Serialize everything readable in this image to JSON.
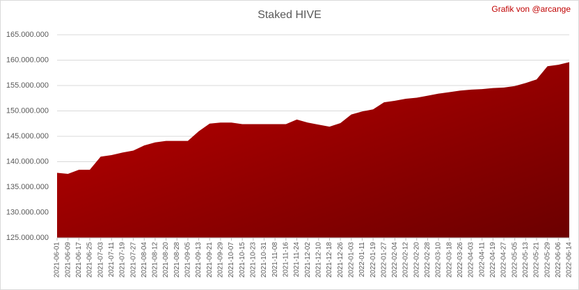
{
  "chart_data": {
    "type": "area",
    "title": "Staked HIVE",
    "watermark": "Grafik von @arcange",
    "categories": [
      "2021-06-01",
      "2021-06-09",
      "2021-06-17",
      "2021-06-25",
      "2021-07-03",
      "2021-07-11",
      "2021-07-19",
      "2021-07-27",
      "2021-08-04",
      "2021-08-12",
      "2021-08-20",
      "2021-08-28",
      "2021-09-05",
      "2021-09-13",
      "2021-09-21",
      "2021-09-29",
      "2021-10-07",
      "2021-10-15",
      "2021-10-23",
      "2021-10-31",
      "2021-11-08",
      "2021-11-16",
      "2021-11-24",
      "2021-12-02",
      "2021-12-10",
      "2021-12-18",
      "2021-12-26",
      "2022-01-03",
      "2022-01-11",
      "2022-01-19",
      "2022-01-27",
      "2022-02-04",
      "2022-02-12",
      "2022-02-20",
      "2022-02-28",
      "2022-03-10",
      "2022-03-18",
      "2022-03-26",
      "2022-04-03",
      "2022-04-11",
      "2022-04-19",
      "2022-04-27",
      "2022-05-05",
      "2022-05-13",
      "2022-05-21",
      "2022-05-29",
      "2022-06-06",
      "2022-06-14"
    ],
    "values": [
      137800000,
      137600000,
      138400000,
      138400000,
      141000000,
      141300000,
      141800000,
      142200000,
      143200000,
      143800000,
      144100000,
      144100000,
      144100000,
      146000000,
      147500000,
      147700000,
      147700000,
      147400000,
      147400000,
      147400000,
      147400000,
      147400000,
      148300000,
      147700000,
      147300000,
      146900000,
      147600000,
      149300000,
      149900000,
      150300000,
      151700000,
      152000000,
      152400000,
      152600000,
      153000000,
      153400000,
      153700000,
      154000000,
      154200000,
      154300000,
      154500000,
      154600000,
      154900000,
      155500000,
      156200000,
      158800000,
      159100000,
      159600000
    ],
    "colors": [
      "#c00000",
      "#6b0000"
    ],
    "ylim": [
      125000000,
      165000000
    ],
    "yticks": [
      {
        "value": 125000000,
        "label": "125.000.000"
      },
      {
        "value": 130000000,
        "label": "130.000.000"
      },
      {
        "value": 135000000,
        "label": "135.000.000"
      },
      {
        "value": 140000000,
        "label": "140.000.000"
      },
      {
        "value": 145000000,
        "label": "145.000.000"
      },
      {
        "value": 150000000,
        "label": "150.000.000"
      },
      {
        "value": 155000000,
        "label": "155.000.000"
      },
      {
        "value": 160000000,
        "label": "160.000.000"
      },
      {
        "value": 165000000,
        "label": "165.000.000"
      }
    ],
    "grid": true
  }
}
